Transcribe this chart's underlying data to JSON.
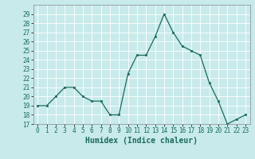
{
  "x": [
    0,
    1,
    2,
    3,
    4,
    5,
    6,
    7,
    8,
    9,
    10,
    11,
    12,
    13,
    14,
    15,
    16,
    17,
    18,
    19,
    20,
    21,
    22,
    23
  ],
  "y": [
    19,
    19,
    20,
    21,
    21,
    20,
    19.5,
    19.5,
    18,
    18,
    22.5,
    24.5,
    24.5,
    26.5,
    29,
    27,
    25.5,
    25,
    24.5,
    21.5,
    19.5,
    17,
    17.5,
    18
  ],
  "xlabel": "Humidex (Indice chaleur)",
  "line_color": "#1a6b5a",
  "bg_color": "#c8eaea",
  "grid_color": "#b0d8d8",
  "ylim": [
    17,
    30
  ],
  "xlim": [
    -0.5,
    23.5
  ],
  "yticks": [
    17,
    18,
    19,
    20,
    21,
    22,
    23,
    24,
    25,
    26,
    27,
    28,
    29
  ],
  "xticks": [
    0,
    1,
    2,
    3,
    4,
    5,
    6,
    7,
    8,
    9,
    10,
    11,
    12,
    13,
    14,
    15,
    16,
    17,
    18,
    19,
    20,
    21,
    22,
    23
  ]
}
